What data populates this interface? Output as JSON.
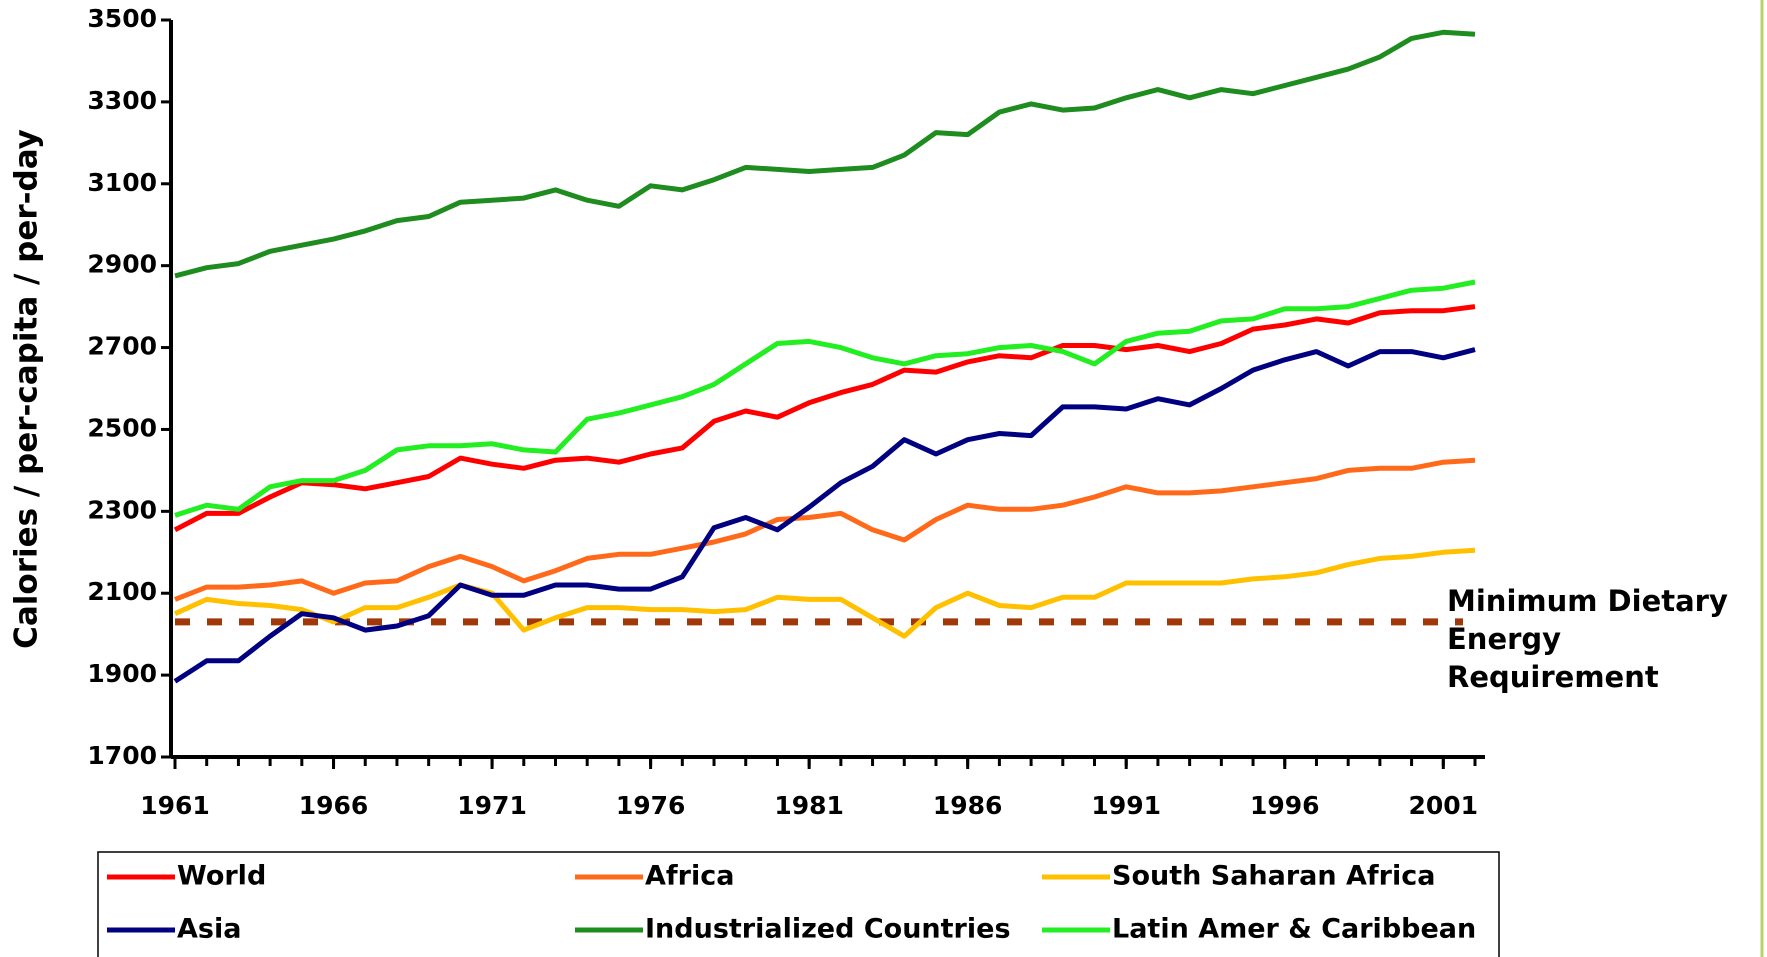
{
  "chart_data": {
    "type": "line",
    "y_label": "Calories / per-capita / per-day",
    "x": [
      1961,
      1962,
      1963,
      1964,
      1965,
      1966,
      1967,
      1968,
      1969,
      1970,
      1971,
      1972,
      1973,
      1974,
      1975,
      1976,
      1977,
      1978,
      1979,
      1980,
      1981,
      1982,
      1983,
      1984,
      1985,
      1986,
      1987,
      1988,
      1989,
      1990,
      1991,
      1992,
      1993,
      1994,
      1995,
      1996,
      1997,
      1998,
      1999,
      2000,
      2001,
      2002
    ],
    "xlim": [
      1961,
      2002
    ],
    "xticks": [
      1961,
      1966,
      1971,
      1976,
      1981,
      1986,
      1991,
      1996,
      2001
    ],
    "ylim": [
      1700,
      3500
    ],
    "yticks": [
      1700,
      1900,
      2100,
      2300,
      2500,
      2700,
      2900,
      3100,
      3300,
      3500
    ],
    "grid": false,
    "series": [
      {
        "name": "World",
        "color": "#ff0000",
        "values": [
          2255,
          2295,
          2295,
          2335,
          2370,
          2365,
          2355,
          2370,
          2385,
          2430,
          2415,
          2405,
          2425,
          2430,
          2420,
          2440,
          2455,
          2520,
          2545,
          2530,
          2565,
          2590,
          2610,
          2645,
          2640,
          2665,
          2680,
          2675,
          2705,
          2705,
          2695,
          2705,
          2690,
          2710,
          2745,
          2755,
          2770,
          2760,
          2785,
          2790,
          2790,
          2800
        ]
      },
      {
        "name": "Africa",
        "color": "#ff6a1a",
        "values": [
          2085,
          2115,
          2115,
          2120,
          2130,
          2100,
          2125,
          2130,
          2165,
          2190,
          2165,
          2130,
          2155,
          2185,
          2195,
          2195,
          2210,
          2225,
          2245,
          2280,
          2285,
          2295,
          2255,
          2230,
          2280,
          2315,
          2305,
          2305,
          2315,
          2335,
          2360,
          2345,
          2345,
          2350,
          2360,
          2370,
          2380,
          2400,
          2405,
          2405,
          2420,
          2425
        ]
      },
      {
        "name": "South Saharan Africa",
        "color": "#ffc000",
        "values": [
          2050,
          2085,
          2075,
          2070,
          2060,
          2030,
          2065,
          2065,
          2090,
          2120,
          2100,
          2010,
          2040,
          2065,
          2065,
          2060,
          2060,
          2055,
          2060,
          2090,
          2085,
          2085,
          2040,
          1995,
          2065,
          2100,
          2070,
          2065,
          2090,
          2090,
          2125,
          2125,
          2125,
          2125,
          2135,
          2140,
          2150,
          2170,
          2185,
          2190,
          2200,
          2205
        ]
      },
      {
        "name": "Asia",
        "color": "#000080",
        "values": [
          1885,
          1935,
          1935,
          1995,
          2050,
          2040,
          2010,
          2020,
          2045,
          2120,
          2095,
          2095,
          2120,
          2120,
          2110,
          2110,
          2140,
          2260,
          2285,
          2255,
          2310,
          2370,
          2410,
          2475,
          2440,
          2475,
          2490,
          2485,
          2555,
          2555,
          2550,
          2575,
          2560,
          2600,
          2645,
          2670,
          2690,
          2655,
          2690,
          2690,
          2675,
          2695
        ]
      },
      {
        "name": "Industrialized Countries",
        "color": "#1e8c1e",
        "values": [
          2875,
          2895,
          2905,
          2935,
          2950,
          2965,
          2985,
          3010,
          3020,
          3055,
          3060,
          3065,
          3085,
          3060,
          3045,
          3095,
          3085,
          3110,
          3140,
          3135,
          3130,
          3135,
          3140,
          3170,
          3225,
          3220,
          3275,
          3295,
          3280,
          3285,
          3310,
          3330,
          3310,
          3330,
          3320,
          3340,
          3360,
          3380,
          3410,
          3455,
          3470,
          3465
        ]
      },
      {
        "name": "Latin Amer & Caribbean",
        "color": "#22ee22",
        "values": [
          2290,
          2315,
          2305,
          2360,
          2375,
          2375,
          2400,
          2450,
          2460,
          2460,
          2465,
          2450,
          2445,
          2525,
          2540,
          2560,
          2580,
          2610,
          2660,
          2710,
          2715,
          2700,
          2675,
          2660,
          2680,
          2685,
          2700,
          2705,
          2690,
          2660,
          2715,
          2735,
          2740,
          2765,
          2770,
          2795,
          2795,
          2800,
          2820,
          2840,
          2845,
          2860
        ]
      }
    ],
    "threshold": {
      "value": 2030,
      "color": "#a0380a",
      "label": [
        "Minimum Dietary",
        "Energy",
        "Requirement"
      ]
    }
  }
}
